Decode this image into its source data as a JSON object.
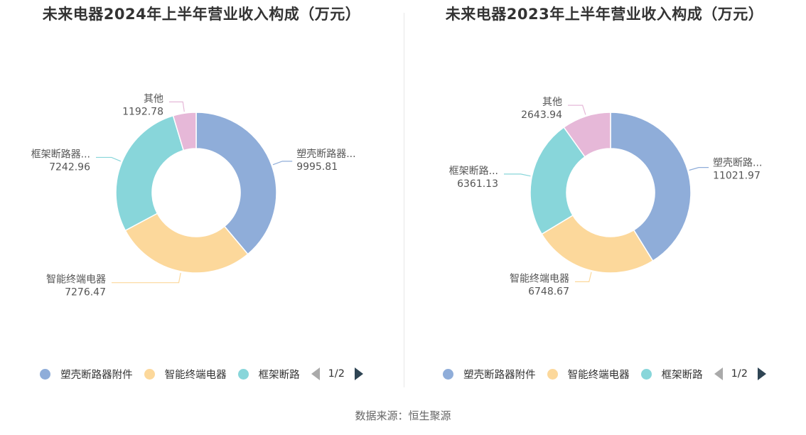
{
  "colors": {
    "series": [
      "#8fadd9",
      "#fcd89b",
      "#88d6da",
      "#e6b8d8"
    ]
  },
  "legend": {
    "items": [
      "塑壳断路器附件",
      "智能终端电器",
      "框架断路"
    ],
    "page_indicator": "1/2"
  },
  "source": "数据来源：恒生聚源",
  "chart_data": [
    {
      "type": "pie",
      "donut": true,
      "title": "未来电器2024年上半年营业收入构成（万元）",
      "categories": [
        "塑壳断路器...",
        "智能终端电器",
        "框架断路器...",
        "其他"
      ],
      "values": [
        9995.81,
        7276.47,
        7242.96,
        1192.78
      ],
      "value_labels": [
        "9995.81",
        "7276.47",
        "7242.96",
        "1192.78"
      ]
    },
    {
      "type": "pie",
      "donut": true,
      "title": "未来电器2023年上半年营业收入构成（万元）",
      "categories": [
        "塑壳断路...",
        "智能终端电器",
        "框架断路...",
        "其他"
      ],
      "values": [
        11021.97,
        6748.67,
        6361.13,
        2643.94
      ],
      "value_labels": [
        "11021.97",
        "6748.67",
        "6361.13",
        "2643.94"
      ]
    }
  ]
}
